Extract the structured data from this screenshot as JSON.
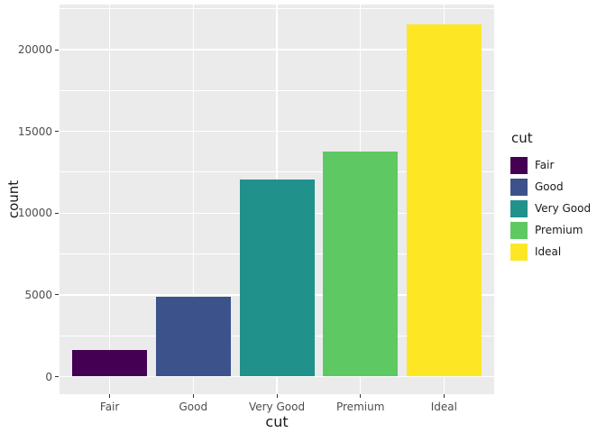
{
  "figure": {
    "background": "#FFFFFF",
    "panel_background": "#EBEBEB",
    "grid_color": "#FFFFFF",
    "tick_label_color": "#4D4D4D",
    "tick_mark_color": "#333333",
    "axis_title_color": "#1A1A1A"
  },
  "chart_data": {
    "type": "bar",
    "title": "",
    "xlabel": "cut",
    "ylabel": "count",
    "categories": [
      "Fair",
      "Good",
      "Very Good",
      "Premium",
      "Ideal"
    ],
    "values": [
      1610,
      4906,
      12082,
      13791,
      21551
    ],
    "bar_colors": [
      "#440154",
      "#3B528B",
      "#21918C",
      "#5EC962",
      "#FDE725"
    ],
    "y_major_ticks": [
      0,
      5000,
      10000,
      15000,
      20000
    ],
    "y_minor_ticks": [
      2500,
      7500,
      12500,
      17500,
      22500
    ],
    "ylim": [
      0,
      22500
    ],
    "grid": true,
    "legend_position": "right",
    "legend": {
      "title": "cut",
      "entries": [
        {
          "label": "Fair",
          "color": "#440154"
        },
        {
          "label": "Good",
          "color": "#3B528B"
        },
        {
          "label": "Very Good",
          "color": "#21918C"
        },
        {
          "label": "Premium",
          "color": "#5EC962"
        },
        {
          "label": "Ideal",
          "color": "#FDE725"
        }
      ]
    }
  }
}
